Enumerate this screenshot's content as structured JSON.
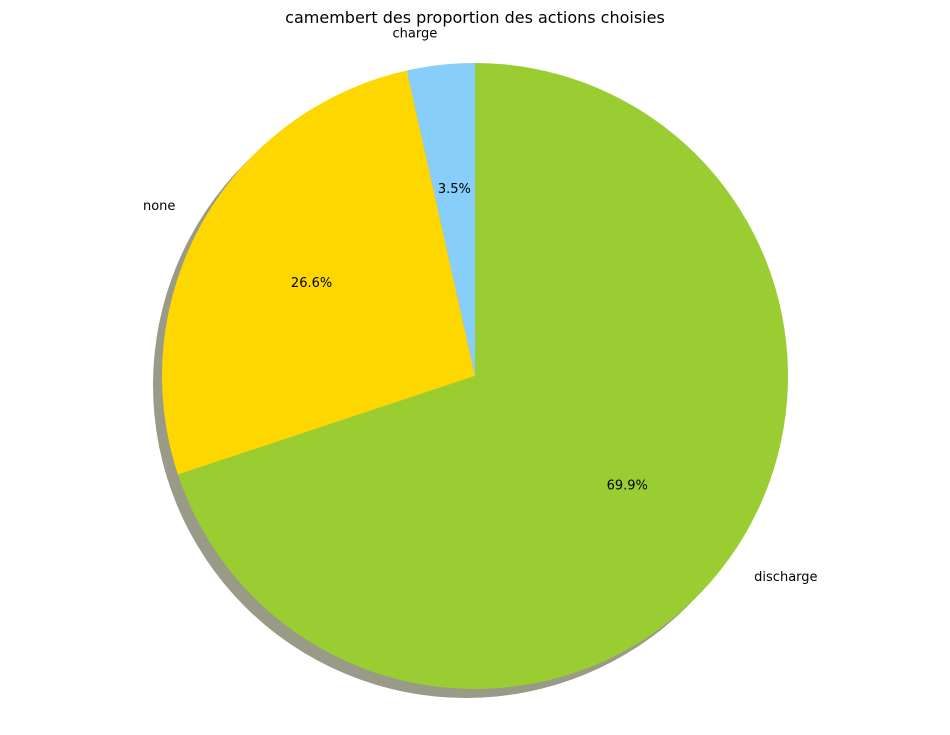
{
  "chart_data": {
    "type": "pie",
    "title": "camembert des proportion des actions choisies",
    "slices": [
      {
        "label": "charge",
        "value": 3.5,
        "pct_label": "3.5%",
        "color": "#87CEFA"
      },
      {
        "label": "none",
        "value": 26.6,
        "pct_label": "26.6%",
        "color": "#FFD700"
      },
      {
        "label": "discharge",
        "value": 69.9,
        "pct_label": "69.9%",
        "color": "#9ACD32"
      }
    ],
    "start_angle_deg": 90,
    "direction": "counterclockwise",
    "shadow": true,
    "shadow_color": "#999a87"
  }
}
